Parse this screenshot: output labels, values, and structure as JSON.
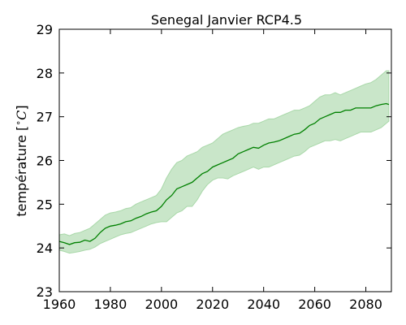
{
  "chart_data": {
    "type": "line",
    "title": "Senegal  Janvier RCP4.5",
    "xlabel": "",
    "ylabel": "température [$^\\circ C$]",
    "ylabel_parts": {
      "main": "température [",
      "sup": "∘",
      "unit": "C",
      "close": "]"
    },
    "xlim": [
      1960,
      2090
    ],
    "ylim": [
      23,
      29
    ],
    "xticks": [
      1960,
      1980,
      2000,
      2020,
      2040,
      2060,
      2080
    ],
    "yticks": [
      23,
      24,
      25,
      26,
      27,
      28,
      29
    ],
    "grid": false,
    "colors": {
      "line": "#008000",
      "band": "#c9e6c9",
      "band_edge": "#a9d8a9"
    },
    "series": [
      {
        "x": [
          1960,
          1962,
          1964,
          1966,
          1968,
          1970,
          1972,
          1974,
          1976,
          1978,
          1980,
          1982,
          1984,
          1986,
          1988,
          1990,
          1992,
          1994,
          1996,
          1998,
          2000,
          2002,
          2004,
          2006,
          2008,
          2010,
          2012,
          2014,
          2016,
          2018,
          2020,
          2022,
          2024,
          2026,
          2028,
          2030,
          2032,
          2034,
          2036,
          2038,
          2040,
          2042,
          2044,
          2046,
          2048,
          2050,
          2052,
          2054,
          2056,
          2058,
          2060,
          2062,
          2064,
          2066,
          2068,
          2070,
          2072,
          2074,
          2076,
          2078,
          2080,
          2082,
          2084,
          2086,
          2088,
          2089
        ],
        "mean": [
          24.15,
          24.12,
          24.08,
          24.12,
          24.13,
          24.18,
          24.15,
          24.22,
          24.35,
          24.45,
          24.5,
          24.52,
          24.55,
          24.6,
          24.62,
          24.68,
          24.72,
          24.78,
          24.82,
          24.85,
          24.95,
          25.1,
          25.2,
          25.35,
          25.4,
          25.45,
          25.5,
          25.6,
          25.7,
          25.75,
          25.85,
          25.9,
          25.95,
          26.0,
          26.05,
          26.15,
          26.2,
          26.25,
          26.3,
          26.28,
          26.35,
          26.4,
          26.42,
          26.45,
          26.5,
          26.55,
          26.6,
          26.62,
          26.7,
          26.8,
          26.85,
          26.95,
          27.0,
          27.05,
          27.1,
          27.1,
          27.15,
          27.15,
          27.2,
          27.2,
          27.2,
          27.2,
          27.25,
          27.28,
          27.3,
          27.28
        ],
        "lower": [
          23.95,
          23.92,
          23.88,
          23.9,
          23.92,
          23.95,
          23.97,
          24.02,
          24.1,
          24.15,
          24.2,
          24.25,
          24.3,
          24.33,
          24.35,
          24.4,
          24.45,
          24.5,
          24.55,
          24.58,
          24.6,
          24.6,
          24.7,
          24.8,
          24.85,
          24.95,
          24.95,
          25.1,
          25.3,
          25.45,
          25.55,
          25.6,
          25.6,
          25.58,
          25.65,
          25.7,
          25.75,
          25.8,
          25.85,
          25.8,
          25.85,
          25.85,
          25.9,
          25.95,
          26.0,
          26.05,
          26.1,
          26.12,
          26.2,
          26.3,
          26.35,
          26.4,
          26.45,
          26.45,
          26.48,
          26.45,
          26.5,
          26.55,
          26.6,
          26.65,
          26.65,
          26.65,
          26.7,
          26.75,
          26.85,
          26.9
        ],
        "upper": [
          24.3,
          24.32,
          24.28,
          24.33,
          24.35,
          24.4,
          24.45,
          24.55,
          24.65,
          24.75,
          24.8,
          24.82,
          24.85,
          24.9,
          24.92,
          25.0,
          25.05,
          25.1,
          25.15,
          25.2,
          25.35,
          25.6,
          25.8,
          25.95,
          26.0,
          26.1,
          26.15,
          26.2,
          26.3,
          26.35,
          26.4,
          26.5,
          26.6,
          26.65,
          26.7,
          26.75,
          26.78,
          26.8,
          26.85,
          26.85,
          26.9,
          26.95,
          26.95,
          27.0,
          27.05,
          27.1,
          27.15,
          27.15,
          27.2,
          27.25,
          27.35,
          27.45,
          27.5,
          27.5,
          27.55,
          27.5,
          27.55,
          27.6,
          27.65,
          27.7,
          27.75,
          27.78,
          27.85,
          27.95,
          28.05,
          28.05
        ]
      }
    ]
  }
}
